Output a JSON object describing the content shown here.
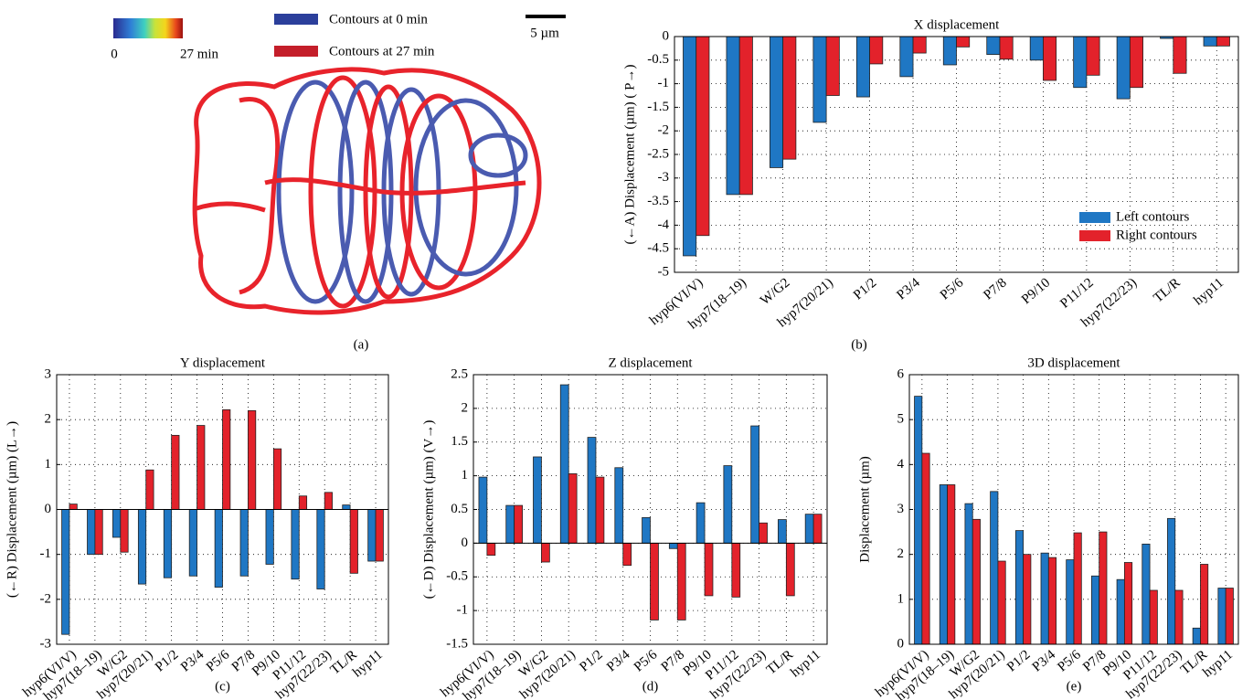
{
  "image_panel": {
    "colorbar_labels": [
      "0",
      "27 min"
    ],
    "legend": [
      "Contours at 0 min",
      "Contours at 27 min"
    ],
    "scale_bar": "5 µm",
    "panel_label": "(a)"
  },
  "chart_data": [
    {
      "type": "bar",
      "title": "X displacement",
      "ylabel": "(←A) Displacement (µm) ( P→)",
      "panel_label": "(b)",
      "categories": [
        "hyp6(VI/V)",
        "hyp7(18–19)",
        "W/G2",
        "hyp7(20/21)",
        "P1/2",
        "P3/4",
        "P5/6",
        "P7/8",
        "P9/10",
        "P11/12",
        "hyp7(22/23)",
        "TL/R",
        "hyp11"
      ],
      "series": [
        {
          "name": "Left contours",
          "color": "#1f77c4",
          "values": [
            -4.65,
            -3.35,
            -2.78,
            -1.82,
            -1.28,
            -0.85,
            -0.6,
            -0.38,
            -0.5,
            -1.08,
            -1.32,
            -0.04,
            -0.2
          ]
        },
        {
          "name": "Right contours",
          "color": "#e3222b",
          "values": [
            -4.22,
            -3.35,
            -2.6,
            -1.25,
            -0.58,
            -0.35,
            -0.22,
            -0.48,
            -0.93,
            -0.82,
            -1.08,
            -0.78,
            -0.2
          ]
        }
      ],
      "ylim": [
        -5,
        0
      ],
      "yticks": [
        0,
        -0.5,
        -1,
        -1.5,
        -2,
        -2.5,
        -3,
        -3.5,
        -4,
        -4.5,
        -5
      ],
      "grid": true,
      "legend": "lower right"
    },
    {
      "type": "bar",
      "title": "Y displacement",
      "ylabel": "(←R) Displacement (µm) (L→)",
      "panel_label": "(c)",
      "categories": [
        "hyp6(VI/V)",
        "hyp7(18–19)",
        "W/G2",
        "hyp7(20/21)",
        "P1/2",
        "P3/4",
        "P5/6",
        "P7/8",
        "P9/10",
        "P11/12",
        "hyp7(22/23)",
        "TL/R",
        "hyp11"
      ],
      "series": [
        {
          "color": "#1f77c4",
          "values": [
            -2.78,
            -1.0,
            -0.62,
            -1.66,
            -1.52,
            -1.48,
            -1.73,
            -1.48,
            -1.22,
            -1.55,
            -1.77,
            0.1,
            -1.15
          ]
        },
        {
          "color": "#e3222b",
          "values": [
            0.12,
            -1.0,
            -0.95,
            0.88,
            1.65,
            1.87,
            2.22,
            2.2,
            1.35,
            0.3,
            0.38,
            -1.42,
            -1.15
          ]
        }
      ],
      "ylim": [
        -3,
        3
      ],
      "yticks": [
        -3,
        -2,
        -1,
        0,
        1,
        2,
        3
      ],
      "grid": true
    },
    {
      "type": "bar",
      "title": "Z displacement",
      "ylabel": "(←D) Displacement (µm) (V→)",
      "panel_label": "(d)",
      "categories": [
        "hyp6(VI/V)",
        "hyp7(18–19)",
        "W/G2",
        "hyp7(20/21)",
        "P1/2",
        "P3/4",
        "P5/6",
        "P7/8",
        "P9/10",
        "P11/12",
        "hyp7(22/23)",
        "TL/R",
        "hyp11"
      ],
      "series": [
        {
          "color": "#1f77c4",
          "values": [
            0.98,
            0.56,
            1.28,
            2.35,
            1.57,
            1.12,
            0.38,
            -0.08,
            0.6,
            1.15,
            1.74,
            0.35,
            0.43
          ]
        },
        {
          "color": "#e3222b",
          "values": [
            -0.18,
            0.56,
            -0.28,
            1.03,
            0.98,
            -0.33,
            -1.14,
            -1.14,
            -0.78,
            -0.8,
            0.3,
            -0.78,
            0.43
          ]
        }
      ],
      "ylim": [
        -1.5,
        2.5
      ],
      "yticks": [
        -1.5,
        -1,
        -0.5,
        0,
        0.5,
        1,
        1.5,
        2,
        2.5
      ],
      "grid": true
    },
    {
      "type": "bar",
      "title": "3D displacement",
      "ylabel": "Displacement (µm)",
      "panel_label": "(e)",
      "categories": [
        "hyp6(VI/V)",
        "hyp7(18–19)",
        "W/G2",
        "hyp7(20/21)",
        "P1/2",
        "P3/4",
        "P5/6",
        "P7/8",
        "P9/10",
        "P11/12",
        "hyp7(22/23)",
        "TL/R",
        "hyp11"
      ],
      "series": [
        {
          "color": "#1f77c4",
          "values": [
            5.52,
            3.55,
            3.13,
            3.4,
            2.53,
            2.03,
            1.88,
            1.52,
            1.44,
            2.23,
            2.8,
            0.36,
            1.25
          ]
        },
        {
          "color": "#e3222b",
          "values": [
            4.25,
            3.55,
            2.78,
            1.85,
            2.0,
            1.93,
            2.48,
            2.5,
            1.82,
            1.2,
            1.2,
            1.78,
            1.25
          ]
        }
      ],
      "ylim": [
        0,
        6
      ],
      "yticks": [
        0,
        1,
        2,
        3,
        4,
        5,
        6
      ],
      "grid": true
    }
  ]
}
